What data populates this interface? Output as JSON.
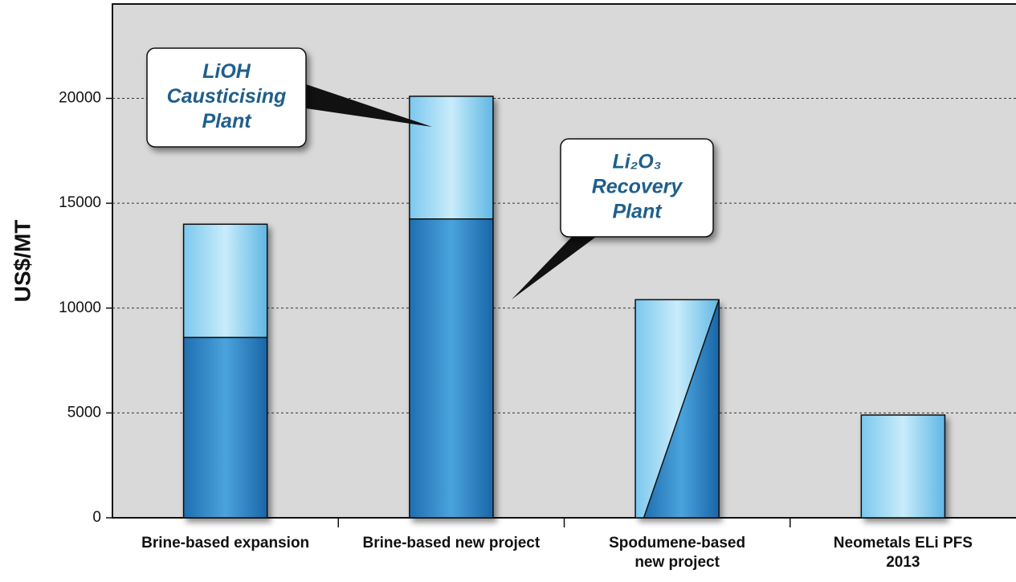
{
  "chart_data": {
    "type": "stacked_bar",
    "y_label": "US$/MT",
    "categories": [
      [
        "Brine-based expansion"
      ],
      [
        "Brine-based new project"
      ],
      [
        "Spodumene-based",
        "new project"
      ],
      [
        "Neometals ELi PFS",
        "2013"
      ]
    ],
    "series": [
      {
        "name": "Li₂O₃ Recovery Plant",
        "color": "#2f86c6",
        "values": [
          8600,
          14250,
          null,
          null
        ]
      },
      {
        "name": "LiOH Causticising Plant",
        "color": "#8fd2f2",
        "values": [
          5400,
          5850,
          null,
          4900
        ]
      }
    ],
    "diagonal": {
      "values": [
        null,
        null,
        10400,
        null
      ]
    },
    "annotations": [
      {
        "lines": [
          "LiOH",
          "Causticising",
          "Plant"
        ]
      },
      {
        "lines": [
          "Li₂O₃",
          "Recovery",
          "Plant"
        ]
      }
    ],
    "ylim": [
      0,
      24500
    ],
    "yticks": [
      0,
      5000,
      10000,
      15000,
      20000
    ],
    "grid": true
  }
}
